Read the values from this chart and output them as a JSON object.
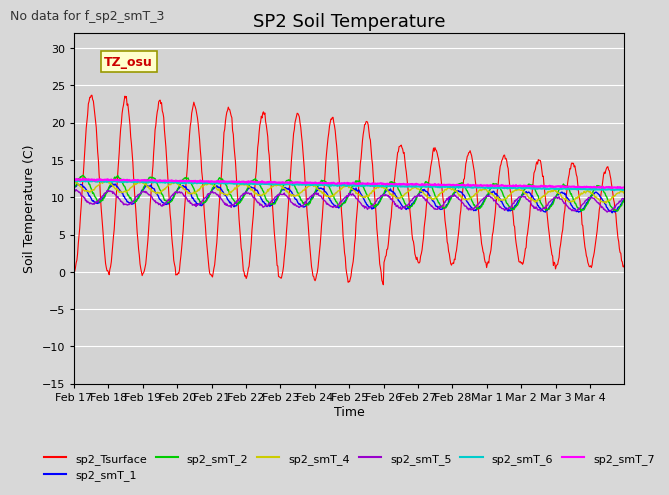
{
  "title": "SP2 Soil Temperature",
  "ylabel": "Soil Temperature (C)",
  "xlabel": "Time",
  "no_data_text": "No data for f_sp2_smT_3",
  "tz_label": "TZ_osu",
  "ylim": [
    -15,
    32
  ],
  "yticks": [
    -15,
    -10,
    -5,
    0,
    5,
    10,
    15,
    20,
    25,
    30
  ],
  "xtick_labels": [
    "Feb 17",
    "Feb 18",
    "Feb 19",
    "Feb 20",
    "Feb 21",
    "Feb 22",
    "Feb 23",
    "Feb 24",
    "Feb 25",
    "Feb 26",
    "Feb 27",
    "Feb 28",
    "Mar 1",
    "Mar 2",
    "Mar 3",
    "Mar 4"
  ],
  "bg_color": "#d8d8d8",
  "plot_bg_color": "#d3d3d3",
  "legend_entries": [
    {
      "label": "sp2_Tsurface",
      "color": "#ff0000"
    },
    {
      "label": "sp2_smT_1",
      "color": "#0000ff"
    },
    {
      "label": "sp2_smT_2",
      "color": "#00cc00"
    },
    {
      "label": "sp2_smT_4",
      "color": "#cccc00"
    },
    {
      "label": "sp2_smT_5",
      "color": "#9900cc"
    },
    {
      "label": "sp2_smT_6",
      "color": "#00cccc"
    },
    {
      "label": "sp2_smT_7",
      "color": "#ff00ff"
    }
  ]
}
